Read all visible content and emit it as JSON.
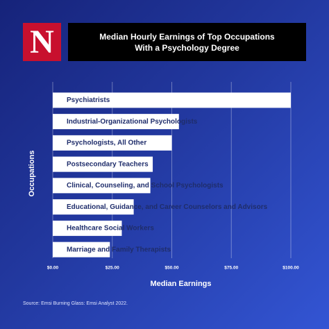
{
  "brand": "N",
  "chart_data": {
    "type": "bar",
    "orientation": "horizontal",
    "title": "Median Hourly Earnings of Top Occupations With a Psychology Degree",
    "categories": [
      "Psychiatrists",
      "Industrial-Organizational Psychologists",
      "Psychologists, All Other",
      "Postsecondary Teachers",
      "Clinical, Counseling, and School Psychologists",
      "Educational, Guidance, and Career Counselors and Advisors",
      "Healthcare Social Workers",
      "Marriage and Family Therapists"
    ],
    "values": [
      100,
      53,
      50,
      42,
      41,
      34,
      29,
      24
    ],
    "color": "#ffffff",
    "xlim": [
      0,
      100
    ],
    "xticks": [
      {
        "value": 0,
        "label": "$0.00"
      },
      {
        "value": 25,
        "label": "$25.00"
      },
      {
        "value": 50,
        "label": "$50.00"
      },
      {
        "value": 75,
        "label": "$75.00"
      },
      {
        "value": 100,
        "label": "$100.00"
      }
    ],
    "grid": true,
    "xlabel": "Median Earnings",
    "ylabel": "Occupations",
    "source": "Source: Emsi Burning Glass: Emsi Analyst 2022."
  }
}
